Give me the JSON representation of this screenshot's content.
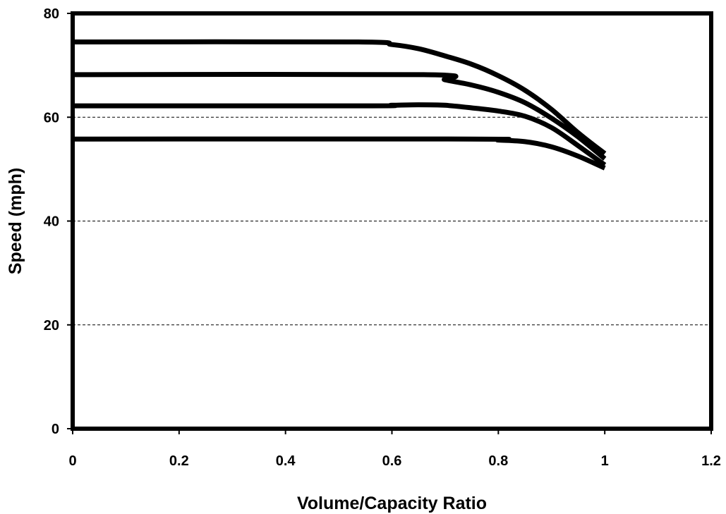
{
  "chart_data": {
    "type": "line",
    "title": "",
    "xlabel": "Volume/Capacity Ratio",
    "ylabel": "Speed (mph)",
    "xlim": [
      0,
      1.2
    ],
    "ylim": [
      0,
      80
    ],
    "x_ticks": [
      "0",
      "0.2",
      "0.4",
      "0.6",
      "0.8",
      "1",
      "1.2"
    ],
    "y_ticks": [
      "0",
      "20",
      "40",
      "60",
      "80"
    ],
    "grid": {
      "horizontal": true,
      "style": "dashed",
      "values": [
        20,
        40,
        60
      ]
    },
    "line_color": "#000000",
    "series": [
      {
        "x": [
          0,
          0.53,
          0.6,
          0.65,
          0.7,
          0.75,
          0.8,
          0.85,
          0.9,
          0.95,
          1.0
        ],
        "y": [
          74.5,
          74.5,
          74.0,
          73.2,
          71.8,
          70.2,
          68.0,
          65.2,
          61.5,
          57.0,
          53.0
        ]
      },
      {
        "x": [
          0,
          0.66,
          0.7,
          0.75,
          0.8,
          0.85,
          0.9,
          0.95,
          1.0
        ],
        "y": [
          68.2,
          68.2,
          67.2,
          66.2,
          64.8,
          62.8,
          59.8,
          56.2,
          52.0
        ]
      },
      {
        "x": [
          0,
          0.55,
          0.6,
          0.65,
          0.7,
          0.75,
          0.8,
          0.85,
          0.9,
          0.95,
          1.0
        ],
        "y": [
          62.2,
          62.2,
          62.3,
          62.4,
          62.3,
          61.8,
          61.2,
          60.2,
          58.0,
          54.5,
          50.8
        ]
      },
      {
        "x": [
          0,
          0.75,
          0.8,
          0.85,
          0.9,
          0.95,
          1.0
        ],
        "y": [
          55.8,
          55.8,
          55.6,
          55.3,
          54.3,
          52.5,
          50.2
        ]
      }
    ]
  }
}
